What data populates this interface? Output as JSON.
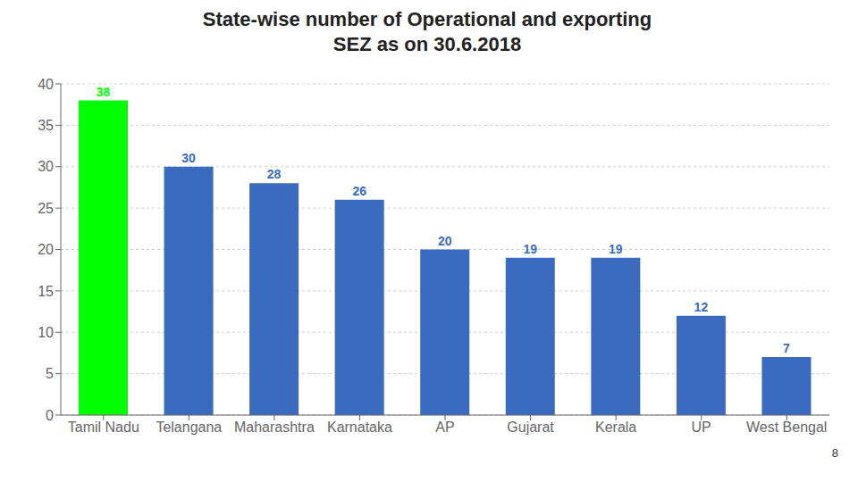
{
  "chart_data": {
    "type": "bar",
    "title": "State-wise number of Operational and exporting\nSEZ as on 30.6.2018",
    "categories": [
      "Tamil Nadu",
      "Telangana",
      "Maharashtra",
      "Karnataka",
      "AP",
      "Gujarat",
      "Kerala",
      "UP",
      "West Bengal"
    ],
    "values": [
      38,
      30,
      28,
      26,
      20,
      19,
      19,
      12,
      7
    ],
    "colors": [
      "#00ff00",
      "#3a6bbf",
      "#3a6bbf",
      "#3a6bbf",
      "#3a6bbf",
      "#3a6bbf",
      "#3a6bbf",
      "#3a6bbf",
      "#3a6bbf"
    ],
    "ylim": [
      0,
      40
    ],
    "yticks": [
      0,
      5,
      10,
      15,
      20,
      25,
      30,
      35,
      40
    ],
    "grid": true,
    "data_labels": true,
    "annotations": [
      "8"
    ]
  }
}
